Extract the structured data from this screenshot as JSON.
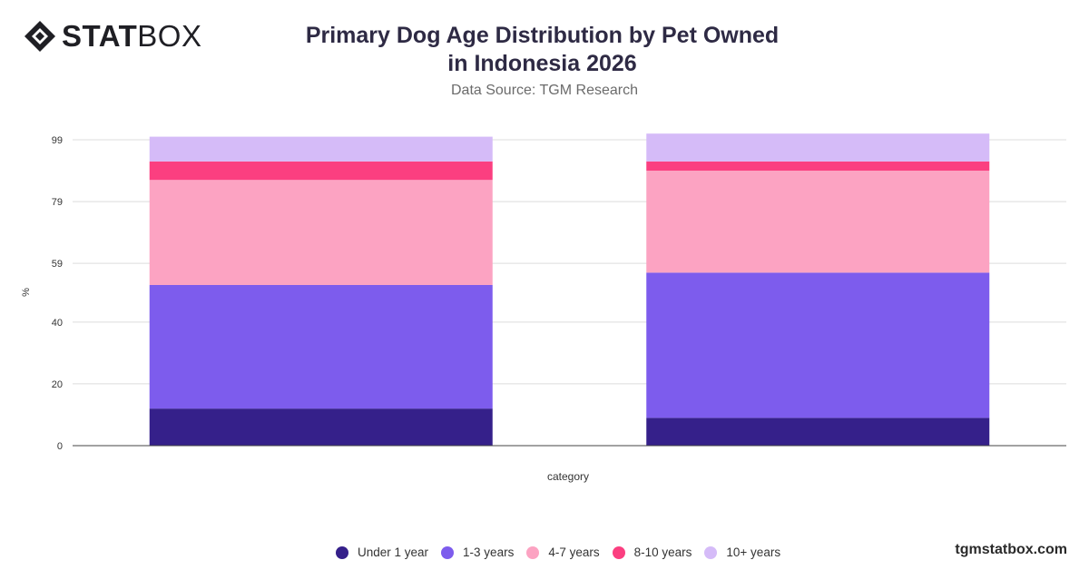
{
  "brand": {
    "logo_bold": "STAT",
    "logo_light": "BOX",
    "icon": "diamond-logo-icon"
  },
  "title": "Primary Dog Age Distribution by Pet Owned in Indonesia 2026",
  "subtitle": "Data Source: TGM Research",
  "footer": {
    "site": "tgmstatbox.com"
  },
  "chart_data": {
    "type": "bar",
    "stacked": true,
    "title": "Primary Dog Age Distribution by Pet Owned in Indonesia 2026",
    "subtitle": "Data Source: TGM Research",
    "xlabel": "category",
    "ylabel": "%",
    "ylim": [
      0,
      99
    ],
    "yticks": [
      0,
      20,
      40,
      59,
      79,
      99
    ],
    "grid": true,
    "legend_position": "bottom",
    "categories": [
      "",
      ""
    ],
    "series": [
      {
        "name": "Under 1 year",
        "color": "#35208a",
        "values": [
          12,
          9
        ]
      },
      {
        "name": "1-3 years",
        "color": "#7d5ced",
        "values": [
          40,
          47
        ]
      },
      {
        "name": "4-7 years",
        "color": "#fca3c2",
        "values": [
          34,
          33
        ]
      },
      {
        "name": "8-10 years",
        "color": "#fb3f80",
        "values": [
          6,
          3
        ]
      },
      {
        "name": "10+ years",
        "color": "#d5bbf8",
        "values": [
          8,
          9
        ]
      }
    ]
  }
}
